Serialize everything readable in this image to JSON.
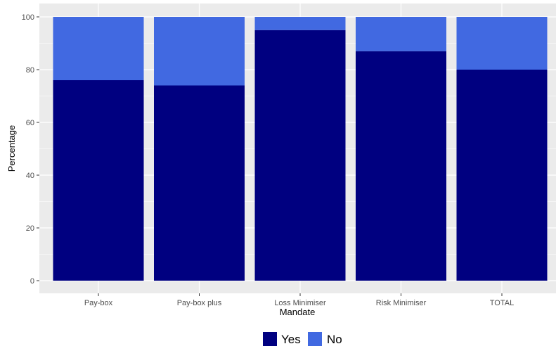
{
  "chart_data": {
    "type": "bar",
    "stacked": true,
    "categories": [
      "Pay-box",
      "Pay-box plus",
      "Loss Minimiser",
      "Risk Minimiser",
      "TOTAL"
    ],
    "series": [
      {
        "name": "Yes",
        "color": "#000080",
        "values": [
          76,
          74,
          95,
          87,
          80
        ]
      },
      {
        "name": "No",
        "color": "#4169E1",
        "values": [
          24,
          26,
          5,
          13,
          20
        ]
      }
    ],
    "xlabel": "Mandate",
    "ylabel": "Percentage",
    "ylim": [
      0,
      100
    ],
    "yticks": [
      0,
      20,
      40,
      60,
      80,
      100
    ],
    "grid": true,
    "legend": {
      "position": "bottom",
      "entries": [
        "Yes",
        "No"
      ]
    }
  }
}
